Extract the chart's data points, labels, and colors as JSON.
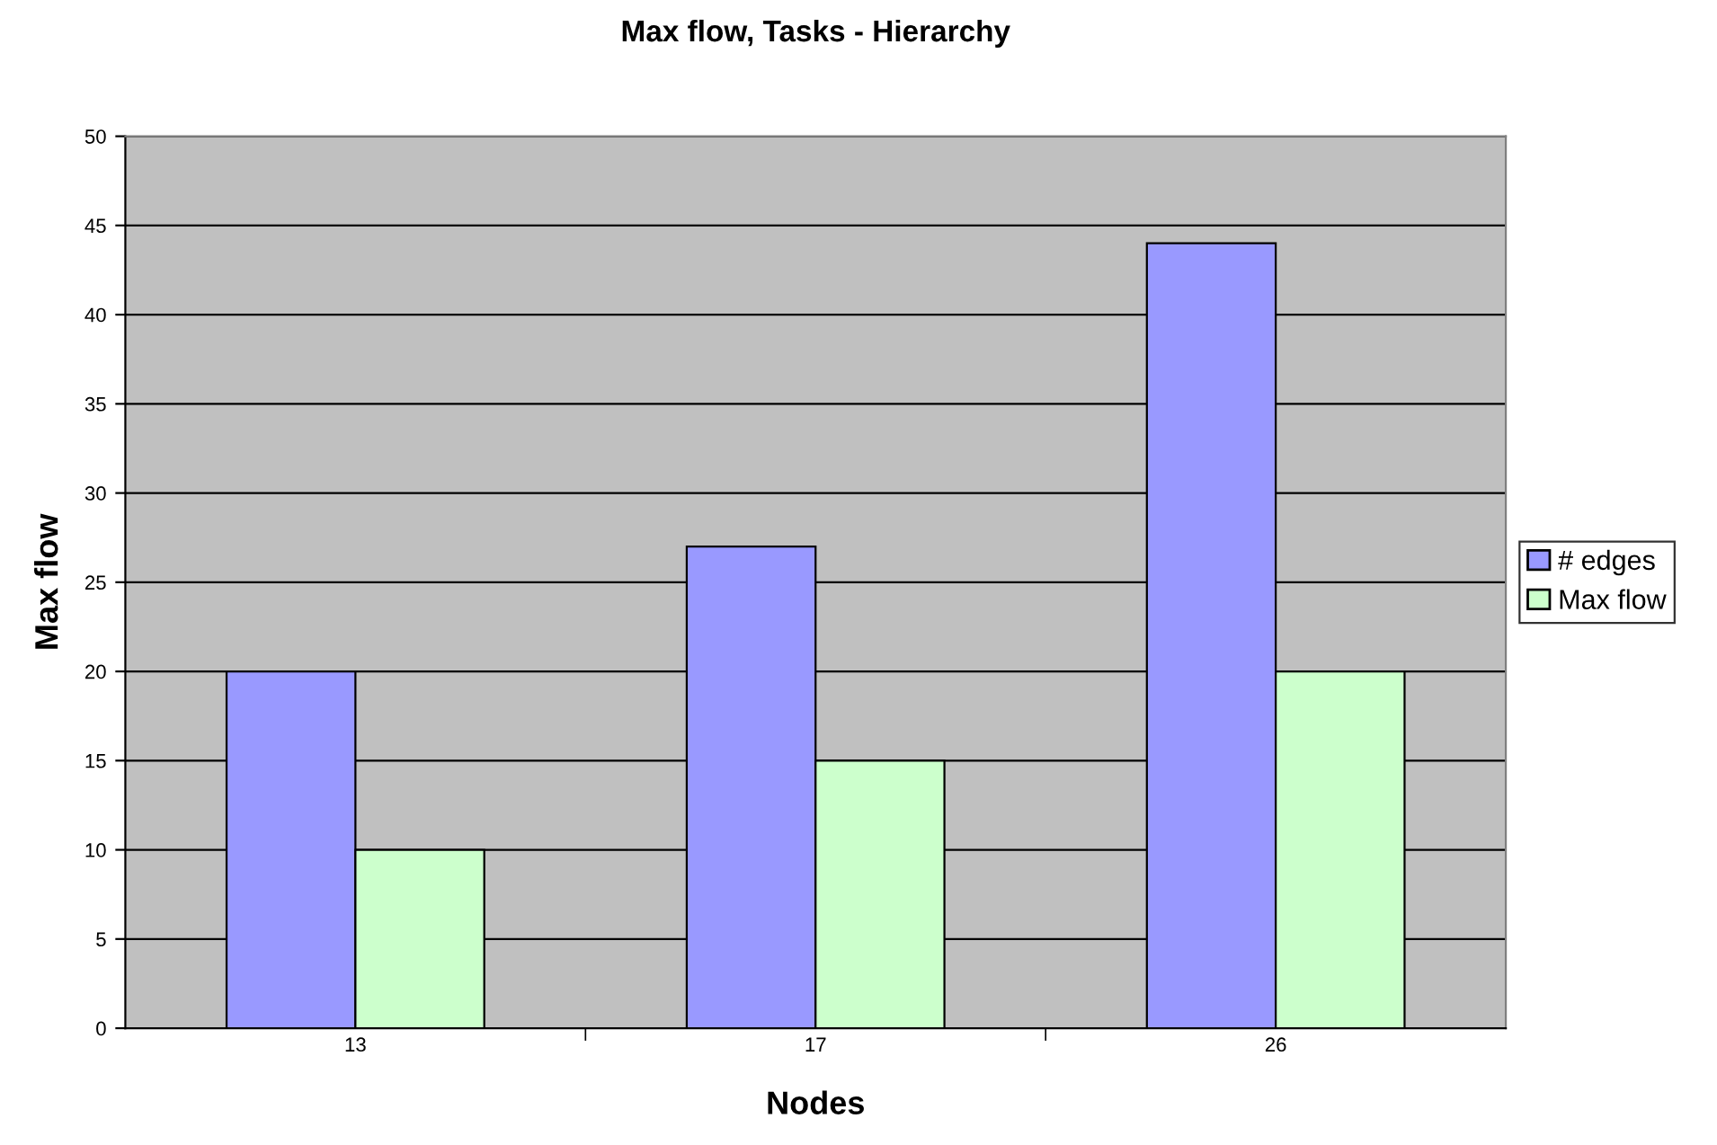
{
  "chart_data": {
    "type": "bar",
    "title": "Max flow, Tasks - Hierarchy",
    "xlabel": "Nodes",
    "ylabel": "Max flow",
    "categories": [
      "13",
      "17",
      "26"
    ],
    "series": [
      {
        "name": "# edges",
        "color": "#9999ff",
        "values": [
          20,
          27,
          44
        ]
      },
      {
        "name": "Max flow",
        "color": "#ccffcc",
        "values": [
          10,
          15,
          20
        ]
      }
    ],
    "ylim": [
      0,
      50
    ],
    "yticks": [
      0,
      5,
      10,
      15,
      20,
      25,
      30,
      35,
      40,
      45,
      50
    ],
    "grid": "y",
    "legend": "right"
  }
}
